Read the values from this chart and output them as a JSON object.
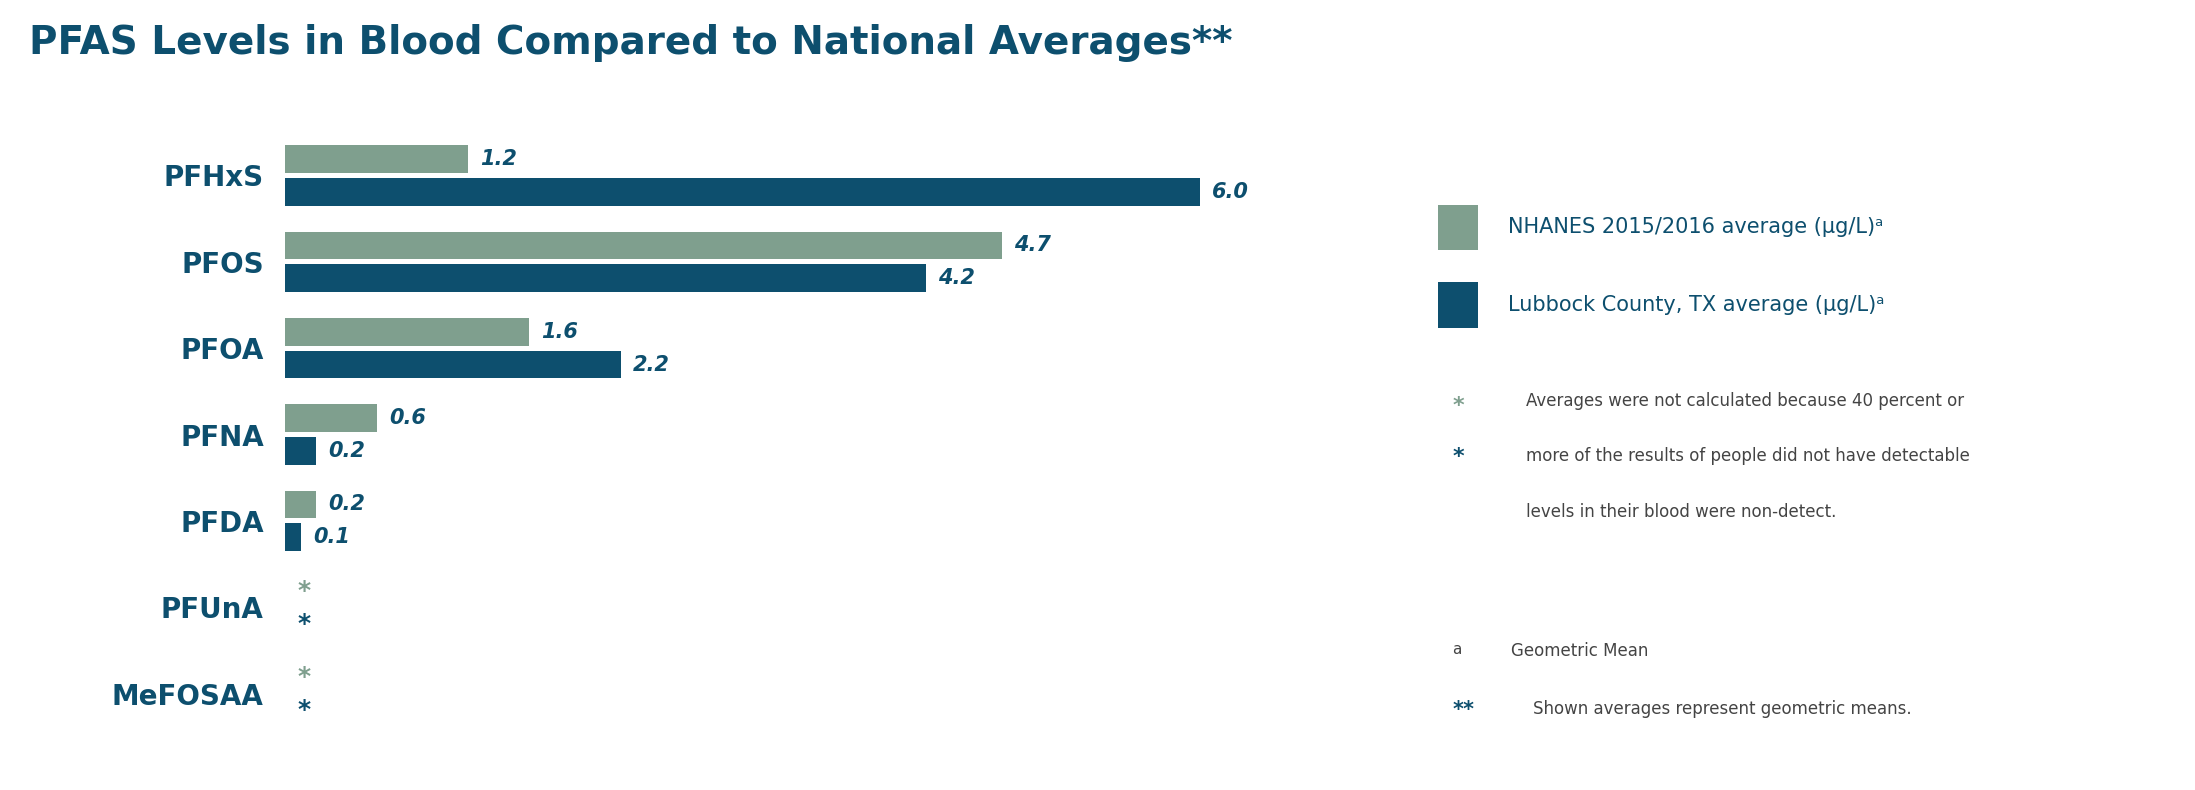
{
  "title": "PFAS Levels in Blood Compared to National Averages**",
  "title_color": "#0d4f6e",
  "title_fontsize": 28,
  "categories": [
    "PFHxS",
    "PFOS",
    "PFOA",
    "PFNA",
    "PFDA",
    "PFUnA",
    "MeFOSAA"
  ],
  "nhanes_values": [
    1.2,
    4.7,
    1.6,
    0.6,
    0.2,
    null,
    null
  ],
  "lubbock_values": [
    6.0,
    4.2,
    2.2,
    0.2,
    0.1,
    null,
    null
  ],
  "nhanes_color": "#7f9f8e",
  "lubbock_color": "#0d4f6e",
  "bar_height": 0.32,
  "background_color": "#ffffff",
  "label_color": "#0d4f6e",
  "label_fontsize": 15,
  "ylabel_color": "#0d4f6e",
  "ylabel_fontsize": 20,
  "legend_nhanes_label": "NHANES 2015/2016 average (μg/L)ᵃ",
  "legend_lubbock_label": "Lubbock County, TX average (μg/L)ᵃ",
  "note_star_line1": "Averages were not calculated because 40 percent or",
  "note_star_line2": "more of the results of people did not have detectable",
  "note_star_line3": "levels in their blood were non-detect.",
  "note_a": "Geometric Mean",
  "note_double_star": "Shown averages represent geometric means.",
  "xlim": [
    0,
    7.2
  ],
  "figsize": [
    21.95,
    7.9
  ],
  "dpi": 100
}
